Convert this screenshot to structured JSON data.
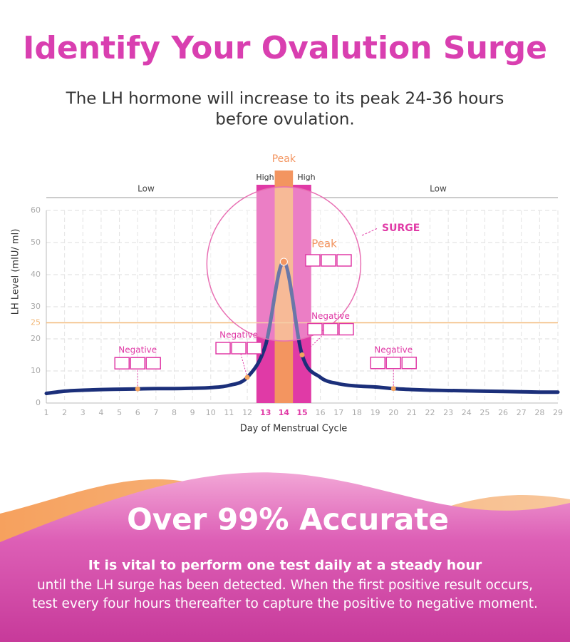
{
  "header": {
    "title": "Identify Your Ovalution Surge",
    "subtitle_lines": [
      "The LH hormone will increase to its peak 24-36 hours",
      "before ovulation."
    ]
  },
  "chart_data": {
    "type": "line",
    "x_label": "Day of  Menstrual Cycle",
    "y_label": "LH Level (mIU/ ml)",
    "x": [
      1,
      2,
      3,
      4,
      5,
      6,
      7,
      8,
      9,
      10,
      11,
      12,
      13,
      14,
      15,
      16,
      17,
      18,
      19,
      20,
      21,
      22,
      23,
      24,
      25,
      26,
      27,
      28,
      29
    ],
    "series": [
      {
        "name": "LH",
        "color": "#1b2f7a",
        "values": [
          3,
          3.7,
          4,
          4.2,
          4.3,
          4.4,
          4.5,
          4.5,
          4.6,
          4.8,
          5.5,
          8,
          18,
          44,
          15,
          8,
          6,
          5.3,
          5,
          4.5,
          4.2,
          4,
          3.9,
          3.8,
          3.7,
          3.6,
          3.5,
          3.4,
          3.4
        ]
      }
    ],
    "xlim": [
      1,
      29
    ],
    "ylim": [
      0,
      60
    ],
    "xticks": [
      1,
      2,
      3,
      4,
      5,
      6,
      7,
      8,
      9,
      10,
      11,
      12,
      13,
      14,
      15,
      16,
      17,
      18,
      19,
      20,
      21,
      22,
      23,
      24,
      25,
      26,
      27,
      28,
      29
    ],
    "yticks": [
      0,
      10,
      20,
      30,
      40,
      50,
      60
    ],
    "grid": true,
    "threshold": 25,
    "threshold_color": "#f2b97a",
    "surge_band": [
      12.5,
      15.5
    ],
    "surge_color": "#e03aa6",
    "peak_band": [
      13.5,
      14.5
    ],
    "peak_color": "#f39560",
    "zone_labels": {
      "low_left": "Low",
      "high_left": "High",
      "peak": "Peak",
      "high_right": "High",
      "low_right": "Low"
    },
    "surge_label": "SURGE",
    "peak_label": "Peak",
    "peak_day": 14,
    "markers": [
      {
        "label": "Negative",
        "x": 6
      },
      {
        "label": "Negative",
        "x": 12
      },
      {
        "label": "Negative",
        "x": 15
      },
      {
        "label": "Negative",
        "x": 20
      }
    ]
  },
  "footer": {
    "title": "Over 99% Accurate",
    "bold_line": "It is vital to perform one test daily at a steady hour",
    "lines": [
      "until the LH surge has been detected. When the first positive result occurs,",
      "test every four hours thereafter to capture the positive to negative moment."
    ]
  }
}
